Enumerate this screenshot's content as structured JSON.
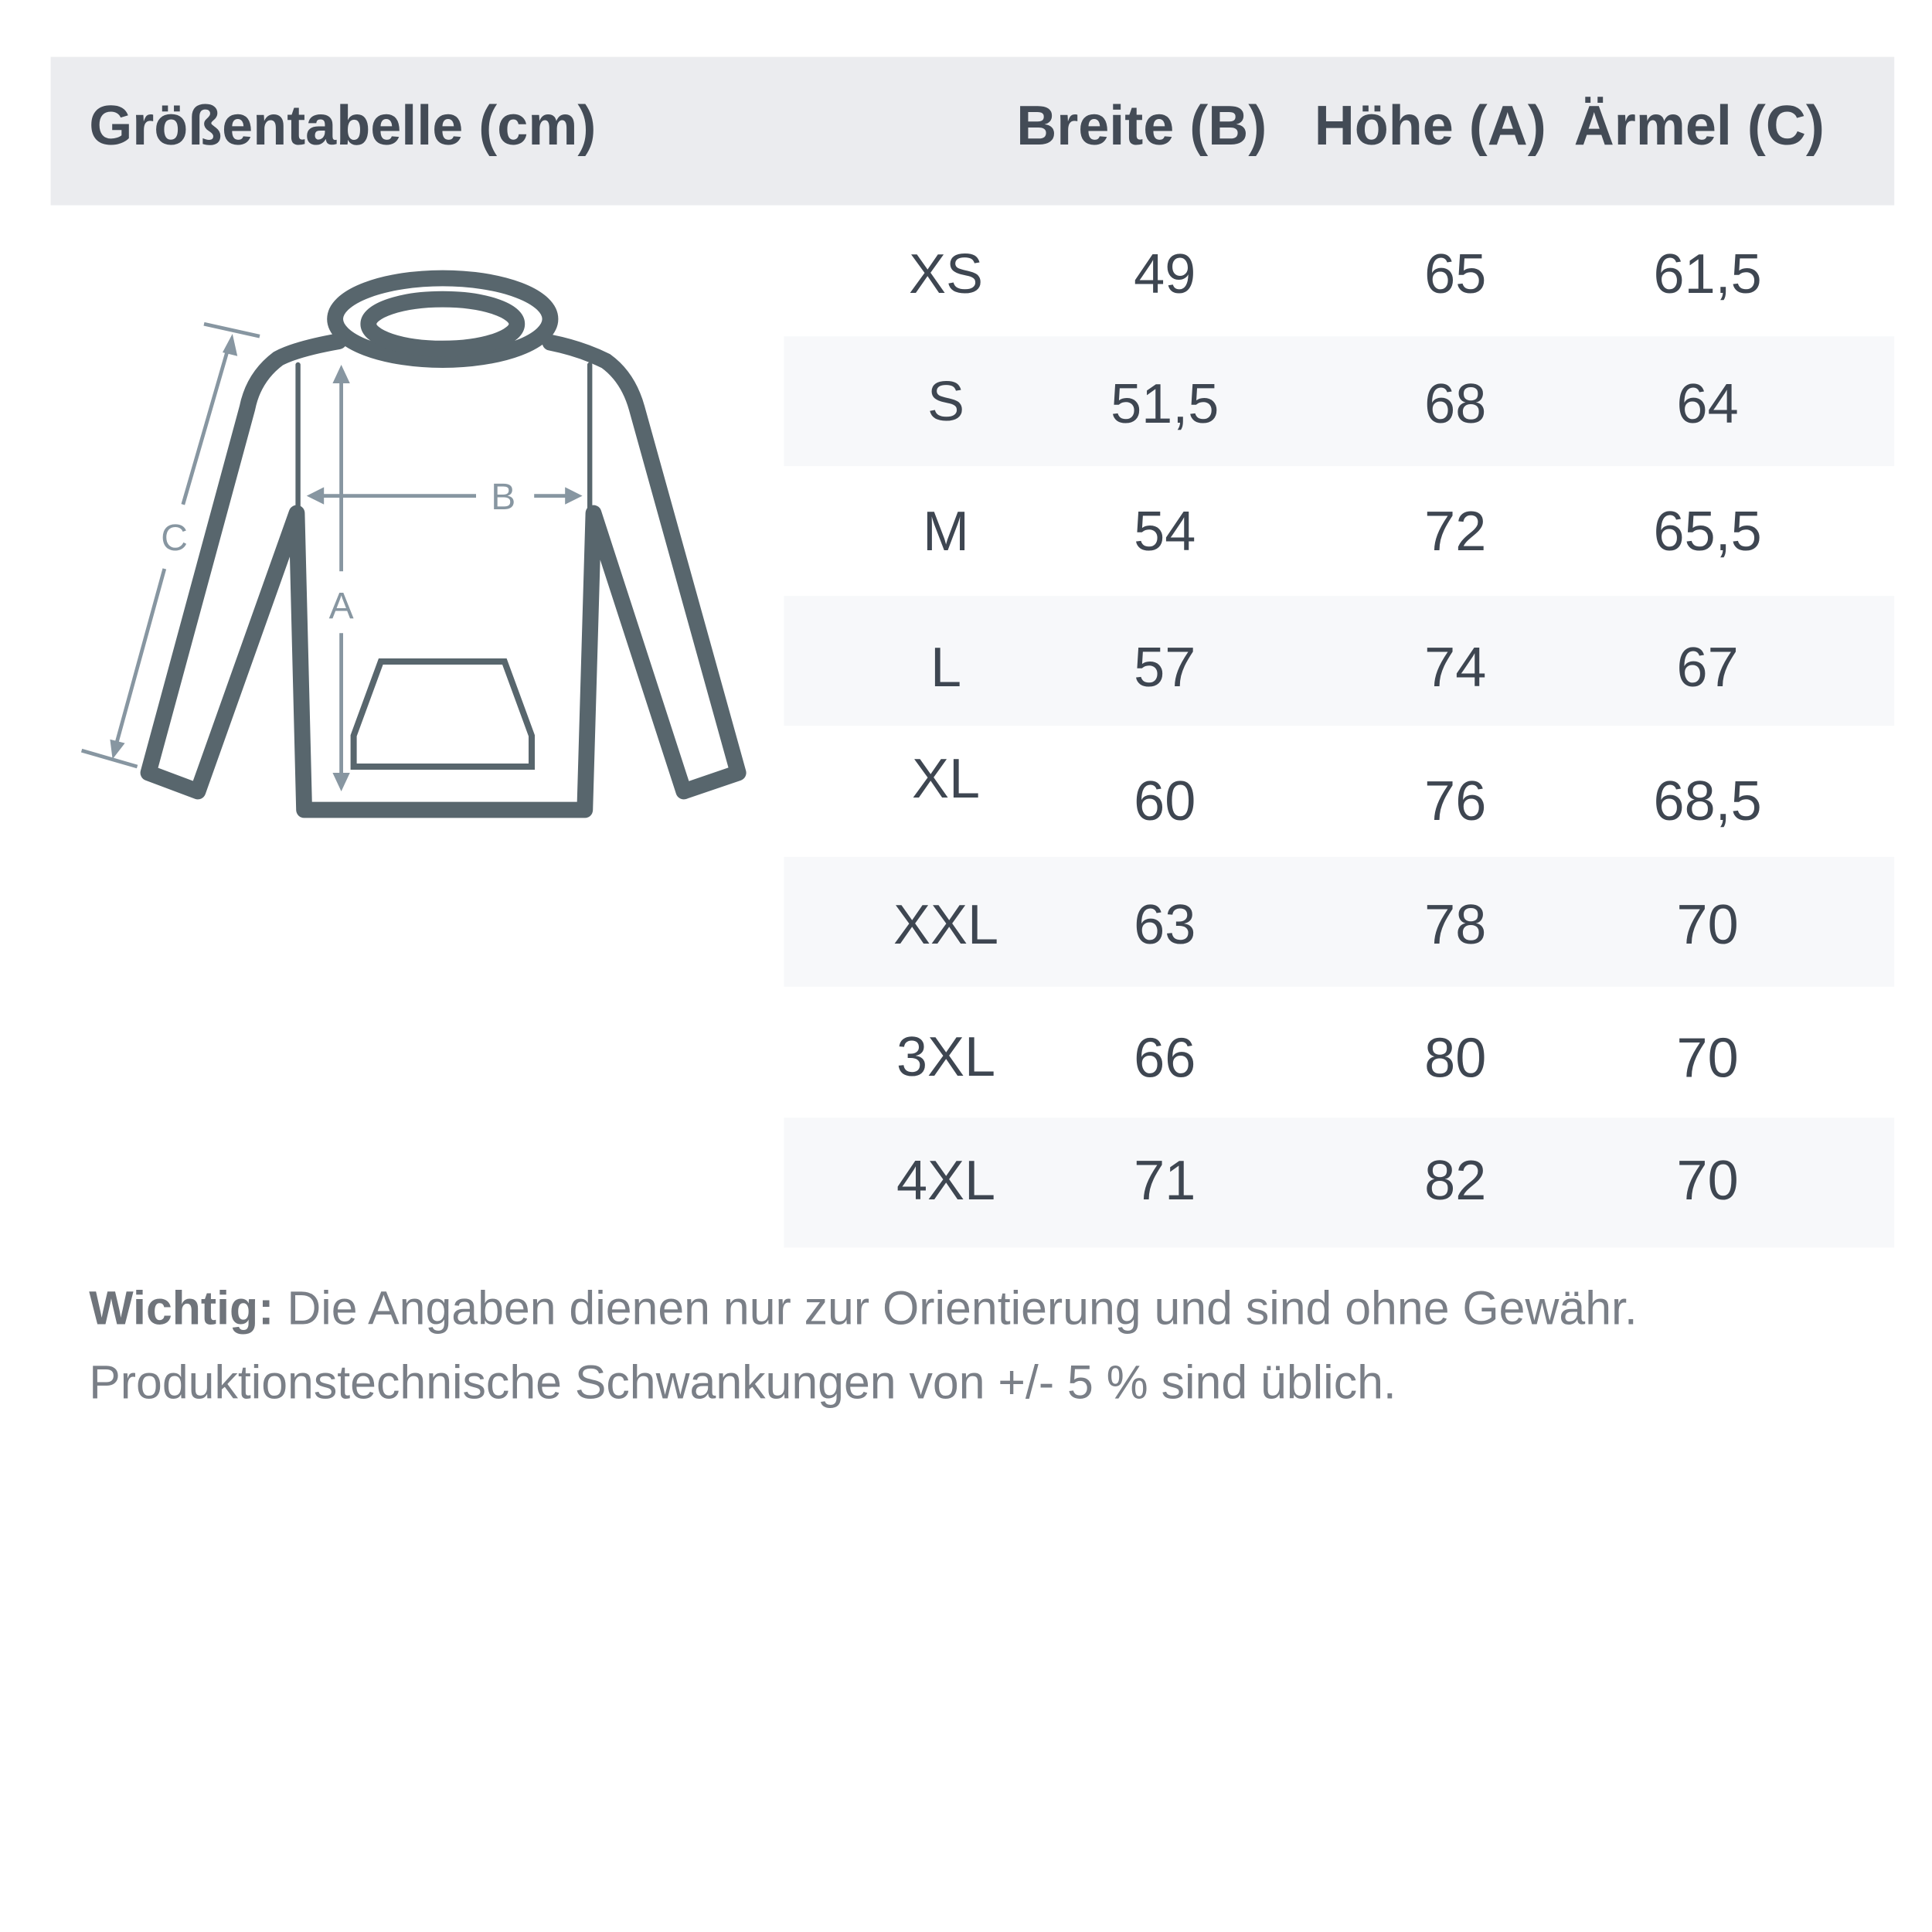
{
  "header": {
    "title": "Größentabelle (cm)",
    "columns": [
      "Breite (B)",
      "Höhe (A)",
      "Ärmel (C)"
    ]
  },
  "diagram": {
    "labels": {
      "width": "B",
      "height": "A",
      "sleeve": "C"
    },
    "colors": {
      "outline": "#58666d",
      "measure": "#8796a1"
    }
  },
  "rows": [
    {
      "size": "XS",
      "breite": "49",
      "hoehe": "65",
      "aermel": "61,5"
    },
    {
      "size": "S",
      "breite": "51,5",
      "hoehe": "68",
      "aermel": "64"
    },
    {
      "size": "M",
      "breite": "54",
      "hoehe": "72",
      "aermel": "65,5"
    },
    {
      "size": "L",
      "breite": "57",
      "hoehe": "74",
      "aermel": "67"
    },
    {
      "size": "XL",
      "breite": "60",
      "hoehe": "76",
      "aermel": "68,5"
    },
    {
      "size": "XXL",
      "breite": "63",
      "hoehe": "78",
      "aermel": "70"
    },
    {
      "size": "3XL",
      "breite": "66",
      "hoehe": "80",
      "aermel": "70"
    },
    {
      "size": "4XL",
      "breite": "71",
      "hoehe": "82",
      "aermel": "70"
    }
  ],
  "note": {
    "label": "Wichtig:",
    "line1": "Die Angaben dienen nur zur Orientierung und sind ohne Gewähr.",
    "line2": "Produktionstechnische Schwankungen von +/- 5 % sind üblich."
  }
}
